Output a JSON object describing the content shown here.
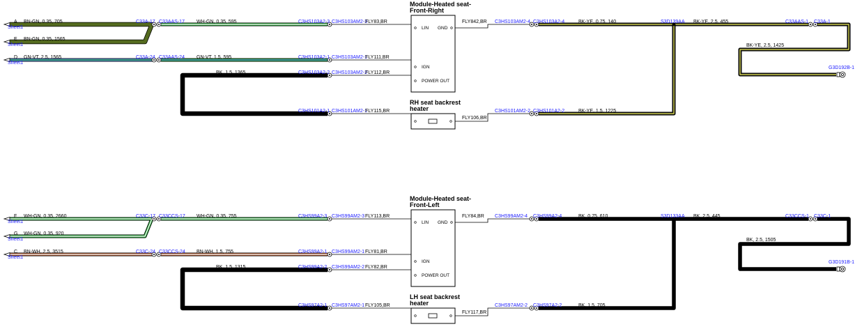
{
  "colors": {
    "connector_text": "#1a1aff",
    "green": "#2a9d3a",
    "olive": "#556b1f",
    "yellow": "#f2f25a",
    "brown": "#a0522d",
    "blue": "#4a7fd0",
    "black": "#000000"
  },
  "upper": {
    "module_title": [
      "Module-Heated seat-",
      "Front-Right"
    ],
    "heater_title": [
      "RH seat backrest",
      "heater"
    ],
    "sheet_a": "Sheet1",
    "sheet_e": "Sheet1",
    "sheet_d": "Sheet1",
    "letter_a": "A",
    "letter_e": "E",
    "letter_d": "D",
    "wire_a": "BN-GN,  0.35,  705",
    "wire_e": "BN-GN,  0.35,  1565",
    "wire_d": "GN-VT,  2.5,  1565",
    "conn_a1": "C33A-17",
    "conn_a2": "C33AAS-17",
    "conn_d1": "C33A-24",
    "conn_d2": "C33AAS-24",
    "wire_lin": "WH-GN,  0.35,  595",
    "wire_ign": "GN-VT,  1.5,  595",
    "wire_pwr": "BK,  1.5,  1365",
    "conn_lin1": "C3HS103A2-3",
    "conn_lin2": "C3HS103AM2-3",
    "conn_ign1": "C3HS103A2-1",
    "conn_ign2": "C3HS103AM2-1",
    "conn_pwr1": "C3HS103A2-2",
    "conn_pwr2": "C3HS103AM2-2",
    "fly_lin": "FLY83,BR",
    "fly_ign": "FLY111,BR",
    "fly_pwr": "FLY112,BR",
    "conn_htr1": "C3HS101A2-1",
    "conn_htr2": "C3HS101AM2-1",
    "fly_htr": "FLY115,BR",
    "pin_lin": "LIN",
    "pin_gnd": "GND",
    "pin_ign": "IGN",
    "pin_pwr": "POWER OUT",
    "fly_gnd": "FLY842,BR",
    "conn_gnd1": "C3HS103AM2-4",
    "conn_gnd2": "C3HS103A2-4",
    "wire_gnd": "BK-YE,  0.75,  140",
    "splice": "S3D139AA",
    "wire_gnd2": "BK-YE,  2.5,  455",
    "conn_r1": "C33AAS-1",
    "conn_r2": "C33A-1",
    "wire_gnd3": "BK-YE,  2.5,  1425",
    "ground": "G3D192B-1",
    "fly_htr2": "FLY106,BR",
    "conn_htr3": "C3HS101AM2-2",
    "conn_htr4": "C3HS101A2-2",
    "wire_htr": "BK-YE,  1.5,  1225"
  },
  "lower": {
    "module_title": [
      "Module-Heated seat-",
      "Front-Left"
    ],
    "heater_title": [
      "LH seat backrest",
      "heater"
    ],
    "sheet_f": "Sheet1",
    "sheet_g": "Sheet1",
    "sheet_c": "Sheet1",
    "letter_f": "F",
    "letter_g": "G",
    "letter_c": "C",
    "wire_f": "WH-GN,  0.35,  2660",
    "wire_g": "WH-GN,  0.35,  920",
    "wire_c": "BN-WH,  2.5,  3515",
    "conn_f1": "C33C-17",
    "conn_f2": "C33CCS-17",
    "conn_c1": "C33C-24",
    "conn_c2": "C33CCS-24",
    "wire_lin": "WH-GN,  0.35,  755",
    "wire_ign": "BN-WH,  1.5,  755",
    "wire_pwr": "BK,  1.5,  1315",
    "conn_lin1": "C3HS99A2-3",
    "conn_lin2": "C3HS99AM2-3",
    "conn_ign1": "C3HS99A2-1",
    "conn_ign2": "C3HS99AM2-1",
    "conn_pwr1": "C3HS99A2-2",
    "conn_pwr2": "C3HS99AM2-2",
    "fly_lin": "FLY113,BR",
    "fly_ign": "FLY81,BR",
    "fly_pwr": "FLY82,BR",
    "conn_htr1": "C3HS97A2-1",
    "conn_htr2": "C3HS97AM2-1",
    "fly_htr": "FLY105,BR",
    "pin_lin": "LIN",
    "pin_gnd": "GND",
    "pin_ign": "IGN",
    "pin_pwr": "POWER OUT",
    "fly_gnd": "FLY84,BR",
    "conn_gnd1": "C3HS99AM2-4",
    "conn_gnd2": "C3HS99A2-4",
    "wire_gnd": "BK,  0.75,  610",
    "splice": "S3D133AA",
    "wire_gnd2": "BK,  2.5,  445",
    "conn_r1": "C33CCS-1",
    "conn_r2": "C33C-1",
    "wire_gnd3": "BK,  2.5,  1505",
    "ground": "G3D191B-1",
    "fly_htr2": "FLY117,BR",
    "conn_htr3": "C3HS97AM2-2",
    "conn_htr4": "C3HS97A2-2",
    "wire_htr": "BK,  1.5,  705"
  }
}
